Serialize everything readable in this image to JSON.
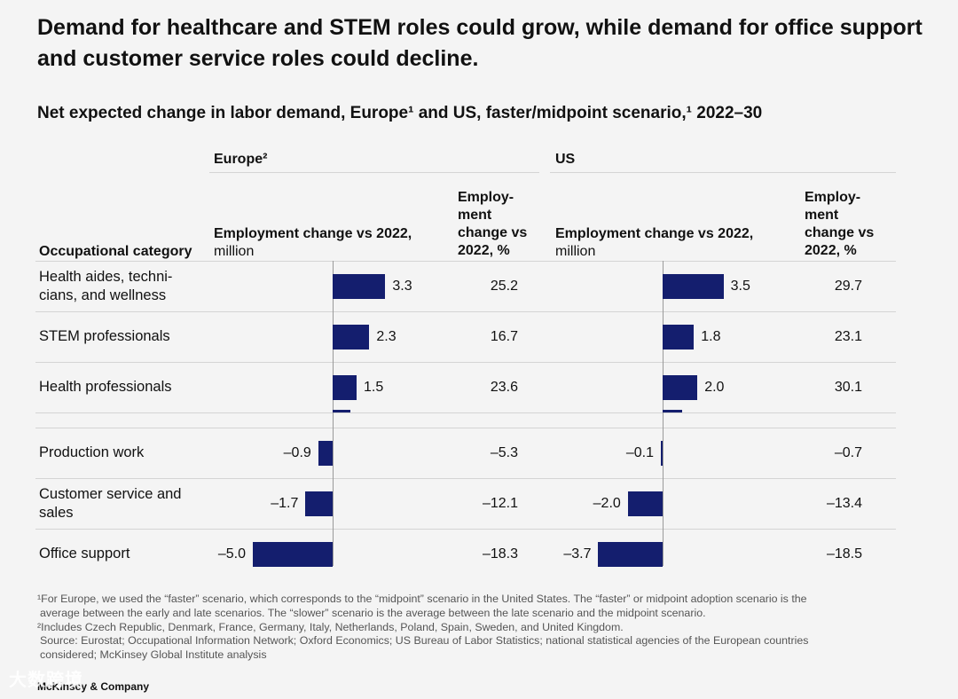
{
  "title": "Demand for healthcare and STEM roles could grow, while demand for office support and customer service roles could decline.",
  "subtitle": "Net expected change in labor demand, Europe¹ and US, faster/midpoint scenario,¹ 2022–30",
  "headers": {
    "category": "Occupational category",
    "emp_change_bold": "Employment change vs 2022,",
    "emp_change_unit": "million",
    "pct_line1": "Employ-",
    "pct_line2": "ment",
    "pct_line3": "change vs",
    "pct_line4": "2022, %"
  },
  "chart_data": {
    "type": "bar",
    "orientation": "horizontal",
    "categories": [
      "Health aides, technicians, and wellness",
      "STEM professionals",
      "Health professionals",
      "",
      "Production work",
      "Customer service and sales",
      "Office support"
    ],
    "category_lines": [
      [
        "Health aides, techni-",
        "cians, and wellness"
      ],
      [
        "STEM professionals"
      ],
      [
        "Health professionals"
      ],
      [
        ""
      ],
      [
        "Production work"
      ],
      [
        "Customer service and"
      ],
      [
        "Office support"
      ]
    ],
    "category_lines_2": [
      [],
      [],
      [],
      [],
      [],
      [
        "sales"
      ],
      []
    ],
    "panels": [
      {
        "name": "Europe²",
        "values": [
          3.3,
          2.3,
          1.5,
          1.1,
          -0.9,
          -1.7,
          -5.0
        ],
        "value_labels": [
          "3.3",
          "2.3",
          "1.5",
          "",
          "–0.9",
          "–1.7",
          "–5.0"
        ],
        "pct_labels": [
          "25.2",
          "16.7",
          "23.6",
          "",
          "–5.3",
          "–12.1",
          "–18.3"
        ],
        "xlim": [
          -5.0,
          3.3
        ]
      },
      {
        "name": "US",
        "values": [
          3.5,
          1.8,
          2.0,
          1.1,
          -0.1,
          -2.0,
          -3.7
        ],
        "value_labels": [
          "3.5",
          "1.8",
          "2.0",
          "",
          "–0.1",
          "–2.0",
          "–3.7"
        ],
        "pct_labels": [
          "29.7",
          "23.1",
          "30.1",
          "",
          "–0.7",
          "–13.4",
          "–18.5"
        ],
        "xlim": [
          -3.7,
          3.5
        ]
      }
    ],
    "units": "million",
    "bar_color": "#141e6e"
  },
  "notes": {
    "fn1_line1": "¹For Europe, we used the “faster” scenario, which corresponds to the “midpoint” scenario in the United States. The “faster” or midpoint adoption scenario is the",
    "fn1_line2": "average between the early and late scenarios. The “slower” scenario is the average between the late scenario and the midpoint scenario.",
    "fn2": "²Includes Czech Republic, Denmark, France, Germany, Italy, Netherlands, Poland, Spain, Sweden, and United Kingdom.",
    "source_line1": "Source: Eurostat; Occupational Information Network; Oxford Economics; US Bureau of Labor Statistics; national statistical agencies of the European countries",
    "source_line2": "considered; McKinsey Global Institute analysis"
  },
  "brand": "McKinsey & Company",
  "watermark": "大数跨境"
}
